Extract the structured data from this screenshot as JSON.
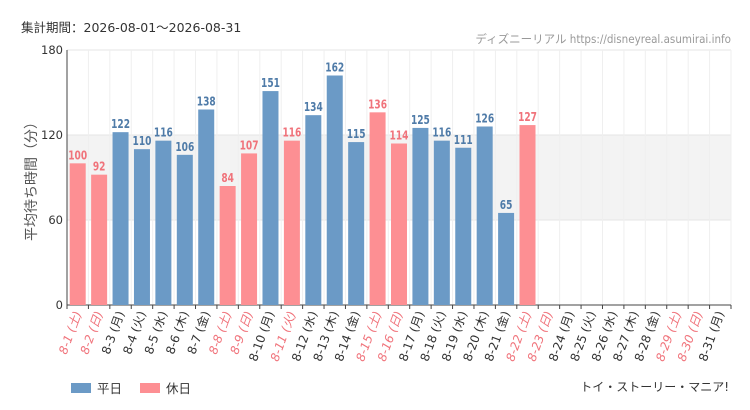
{
  "header": {
    "period": "集計期間：2026-08-01〜2026-08-31",
    "site": "ディズニーリアル https://disneyreal.asumirai.info"
  },
  "footer": {
    "attraction": "トイ・ストーリー・マニア!"
  },
  "colors": {
    "weekday": "#6b9ac6",
    "holiday": "#fd8f93",
    "weekday_label": "#4f7ba8",
    "holiday_label": "#f0737b",
    "axis_weekday_label": "#333333",
    "band": "#f3f3f3",
    "grid": "#e6e6e6"
  },
  "chart_data": {
    "type": "bar",
    "ylabel": "平均待ち時間（分）",
    "ylim": [
      0,
      180
    ],
    "yticks": [
      0,
      60,
      120,
      180
    ],
    "plot_band": [
      60,
      120
    ],
    "grid": true,
    "legend_position": "bottom-left",
    "categories": [
      "8-1 (土)",
      "8-2 (日)",
      "8-3 (月)",
      "8-4 (火)",
      "8-5 (水)",
      "8-6 (木)",
      "8-7 (金)",
      "8-8 (土)",
      "8-9 (日)",
      "8-10 (月)",
      "8-11 (火)",
      "8-12 (水)",
      "8-13 (木)",
      "8-14 (金)",
      "8-15 (土)",
      "8-16 (日)",
      "8-17 (月)",
      "8-18 (火)",
      "8-19 (水)",
      "8-20 (木)",
      "8-21 (金)",
      "8-22 (土)",
      "8-23 (日)",
      "8-24 (月)",
      "8-25 (火)",
      "8-26 (水)",
      "8-27 (木)",
      "8-28 (金)",
      "8-29 (土)",
      "8-30 (日)",
      "8-31 (月)"
    ],
    "day_type": [
      "holiday",
      "holiday",
      "weekday",
      "weekday",
      "weekday",
      "weekday",
      "weekday",
      "holiday",
      "holiday",
      "weekday",
      "holiday",
      "weekday",
      "weekday",
      "weekday",
      "holiday",
      "holiday",
      "weekday",
      "weekday",
      "weekday",
      "weekday",
      "weekday",
      "holiday",
      "holiday",
      "weekday",
      "weekday",
      "weekday",
      "weekday",
      "weekday",
      "holiday",
      "holiday",
      "weekday"
    ],
    "values": [
      100,
      92,
      122,
      110,
      116,
      106,
      138,
      84,
      107,
      151,
      116,
      134,
      162,
      115,
      136,
      114,
      125,
      116,
      111,
      126,
      65,
      127,
      null,
      null,
      null,
      null,
      null,
      null,
      null,
      null,
      null
    ],
    "legend": [
      {
        "key": "weekday",
        "label": "平日"
      },
      {
        "key": "holiday",
        "label": "休日"
      }
    ]
  }
}
